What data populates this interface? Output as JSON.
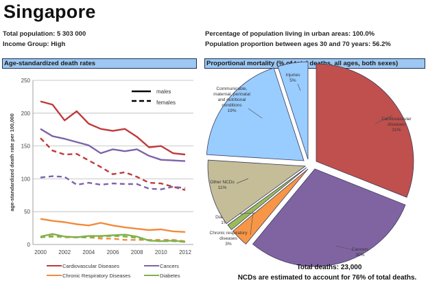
{
  "header": {
    "title": "Singapore",
    "total_population": "Total population:  5 303 000",
    "income_group": "Income Group:  High",
    "urban": "Percentage of population living in urban areas: 100.0%",
    "proportion_30_70": "Population proportion between ages 30 and 70 years:  56.2%"
  },
  "sections": {
    "left_title": "Age-standardized death rates",
    "right_title": "Proportional mortality (% of total deaths, all ages, both sexes)"
  },
  "footer": {
    "total_deaths": "Total deaths: 23,000",
    "ncd_note": "NCDs are estimated to account for 76% of total deaths."
  },
  "chart_data": [
    {
      "type": "line",
      "title": "Age-standardized death rates",
      "xlabel": "",
      "ylabel": "age-standardized death rate per 100,000",
      "x": [
        2000,
        2001,
        2002,
        2003,
        2004,
        2005,
        2006,
        2007,
        2008,
        2009,
        2010,
        2011,
        2012
      ],
      "xticks": [
        "2000",
        "2002",
        "2004",
        "2006",
        "2008",
        "2010",
        "2012"
      ],
      "xtick_values": [
        2000,
        2002,
        2004,
        2006,
        2008,
        2010,
        2012
      ],
      "yticks": [
        "0",
        "50",
        "100",
        "150",
        "200",
        "250"
      ],
      "ytick_values": [
        0,
        50,
        100,
        150,
        200,
        250
      ],
      "ylim": [
        0,
        250
      ],
      "grid": "horizontal",
      "style_legend": [
        {
          "label": "males",
          "style": "solid"
        },
        {
          "label": "females",
          "style": "dashed"
        }
      ],
      "legend": [
        {
          "label": "Cardiovascular Diseases",
          "color": "#c0393b"
        },
        {
          "label": "Cancers",
          "color": "#7b64aa"
        },
        {
          "label": "Chronic Respiratory Diseases",
          "color": "#f28a3c"
        },
        {
          "label": "Diabetes",
          "color": "#7fb24a"
        }
      ],
      "series": [
        {
          "name": "Cardiovascular Diseases - males",
          "color": "#c0393b",
          "style": "solid",
          "values": [
            218,
            213,
            189,
            203,
            184,
            176,
            173,
            176,
            164,
            148,
            150,
            139,
            137
          ]
        },
        {
          "name": "Cardiovascular Diseases - females",
          "color": "#c0393b",
          "style": "dashed",
          "values": [
            162,
            143,
            137,
            138,
            128,
            118,
            107,
            110,
            103,
            94,
            93,
            88,
            83
          ]
        },
        {
          "name": "Cancers - males",
          "color": "#7b64aa",
          "style": "solid",
          "values": [
            176,
            165,
            161,
            156,
            151,
            139,
            145,
            142,
            145,
            135,
            129,
            128,
            127
          ]
        },
        {
          "name": "Cancers - females",
          "color": "#7b64aa",
          "style": "dashed",
          "values": [
            102,
            104,
            103,
            91,
            94,
            91,
            93,
            92,
            92,
            85,
            84,
            88,
            86
          ]
        },
        {
          "name": "Chronic Respiratory Diseases - males",
          "color": "#f28a3c",
          "style": "solid",
          "values": [
            39,
            36,
            34,
            31,
            29,
            33,
            29,
            26,
            24,
            22,
            23,
            20,
            19
          ]
        },
        {
          "name": "Chronic Respiratory Diseases - females",
          "color": "#f28a3c",
          "style": "dashed",
          "values": [
            11,
            13,
            11,
            11,
            11,
            9,
            9,
            7,
            7,
            7,
            7,
            7,
            5
          ]
        },
        {
          "name": "Diabetes - males",
          "color": "#7fb24a",
          "style": "solid",
          "values": [
            12,
            16,
            12,
            11,
            13,
            13,
            14,
            15,
            12,
            6,
            5,
            6,
            4
          ]
        },
        {
          "name": "Diabetes - females",
          "color": "#7fb24a",
          "style": "dashed",
          "values": [
            11,
            12,
            12,
            11,
            11,
            12,
            13,
            12,
            10,
            6,
            5,
            5,
            4
          ]
        }
      ]
    },
    {
      "type": "pie",
      "title": "Proportional mortality (% of total deaths, all ages, both sexes)",
      "slices": [
        {
          "label": "Cardiovascular diseases",
          "value": 31,
          "color": "#c0504d",
          "exploded": true,
          "label_lines": [
            "Cardiovascular",
            "diseases",
            "31%"
          ]
        },
        {
          "label": "Cancers",
          "value": 30,
          "color": "#8064a2",
          "exploded": true,
          "label_lines": [
            "Cancers",
            "30%"
          ]
        },
        {
          "label": "Chronic respiratory diseases",
          "value": 3,
          "color": "#f79646",
          "exploded": true,
          "label_lines": [
            "Chronic respiratory",
            "diseases",
            "3%"
          ]
        },
        {
          "label": "Diabetes",
          "value": 1,
          "color": "#9bbb59",
          "exploded": true,
          "label_lines": [
            "Diabetes",
            "1%"
          ]
        },
        {
          "label": "Other NCDs",
          "value": 11,
          "color": "#c4bd97",
          "exploded": true,
          "label_lines": [
            "Other NCDs",
            "11%"
          ]
        },
        {
          "label": "Communicable, maternal, perinatal and nutritional conditions",
          "value": 19,
          "color": "#99ccff",
          "exploded": false,
          "label_lines": [
            "Communicable,",
            "maternal, perinatal",
            "and nutritional",
            "conditions",
            "19%"
          ]
        },
        {
          "label": "Injuries",
          "value": 5,
          "color": "#99ccff",
          "exploded": false,
          "label_lines": [
            "Injuries",
            "5%"
          ]
        }
      ]
    }
  ]
}
